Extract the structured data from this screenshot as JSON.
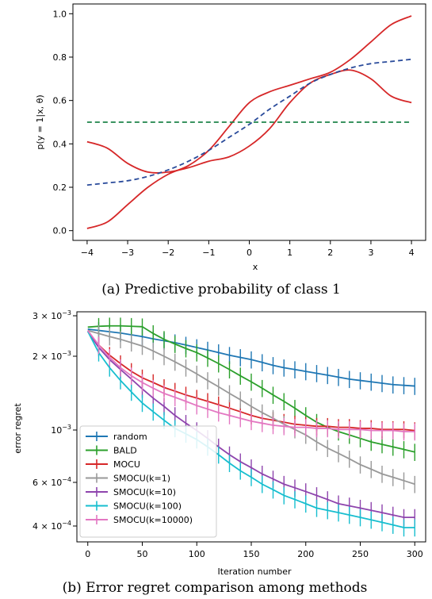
{
  "chart_data": [
    {
      "type": "line",
      "xlabel": "x",
      "ylabel": "p(y = 1|x, θ)",
      "caption": "(a) Predictive probability of class 1",
      "xlim": [
        -4,
        4
      ],
      "ylim": [
        0,
        1
      ],
      "x_ticks": [
        "−4",
        "−3",
        "−2",
        "−1",
        "0",
        "1",
        "2",
        "3",
        "4"
      ],
      "y_ticks": [
        "0.0",
        "0.2",
        "0.4",
        "0.6",
        "0.8",
        "1.0"
      ],
      "grid": false,
      "series": [
        {
          "style": "solid",
          "color": "#d62728",
          "x": [
            -4,
            -3.5,
            -3,
            -2.5,
            -2,
            -1.5,
            -1,
            -0.5,
            0,
            0.5,
            1,
            1.5,
            2,
            2.5,
            3,
            3.5,
            4
          ],
          "y": [
            0.01,
            0.04,
            0.12,
            0.2,
            0.26,
            0.3,
            0.37,
            0.48,
            0.59,
            0.64,
            0.67,
            0.7,
            0.73,
            0.79,
            0.87,
            0.95,
            0.99
          ]
        },
        {
          "style": "solid",
          "color": "#d62728",
          "x": [
            -4,
            -3.5,
            -3,
            -2.5,
            -2,
            -1.5,
            -1,
            -0.5,
            0,
            0.5,
            1,
            1.5,
            2,
            2.5,
            3,
            3.5,
            4
          ],
          "y": [
            0.41,
            0.38,
            0.31,
            0.27,
            0.27,
            0.29,
            0.32,
            0.34,
            0.39,
            0.47,
            0.59,
            0.68,
            0.72,
            0.74,
            0.7,
            0.62,
            0.59
          ]
        },
        {
          "style": "dashed",
          "color": "#2a4b9b",
          "x": [
            -4,
            -3.5,
            -3,
            -2.5,
            -2,
            -1.5,
            -1,
            -0.5,
            0,
            0.5,
            1,
            1.5,
            2,
            2.5,
            3,
            3.5,
            4
          ],
          "y": [
            0.21,
            0.22,
            0.23,
            0.25,
            0.28,
            0.32,
            0.37,
            0.43,
            0.49,
            0.56,
            0.62,
            0.68,
            0.72,
            0.75,
            0.77,
            0.78,
            0.79
          ]
        },
        {
          "style": "dashed",
          "color": "#1e8449",
          "x": [
            -4,
            4
          ],
          "y": [
            0.5,
            0.5
          ]
        }
      ]
    },
    {
      "type": "line",
      "xlabel": "Iteration number",
      "ylabel": "error regret",
      "caption": "(b) Error regret comparison among methods",
      "xlim": [
        -10,
        310
      ],
      "ylim": [
        0.00035,
        0.003
      ],
      "yscale": "log",
      "x_ticks": [
        "0",
        "50",
        "100",
        "150",
        "200",
        "250",
        "300"
      ],
      "legend_position": "lower-left",
      "grid": false,
      "x": [
        0,
        10,
        20,
        30,
        40,
        50,
        60,
        70,
        80,
        90,
        100,
        110,
        120,
        130,
        140,
        150,
        160,
        170,
        180,
        190,
        200,
        210,
        220,
        230,
        240,
        250,
        260,
        270,
        280,
        290,
        300
      ],
      "series": [
        {
          "name": "random",
          "color": "#1f77b4",
          "values": [
            0.00255,
            0.00252,
            0.00249,
            0.00246,
            0.00242,
            0.00238,
            0.00233,
            0.00229,
            0.00225,
            0.0022,
            0.00215,
            0.0021,
            0.00205,
            0.002,
            0.00196,
            0.00192,
            0.00187,
            0.00182,
            0.00178,
            0.00175,
            0.00172,
            0.00169,
            0.00166,
            0.00163,
            0.0016,
            0.00158,
            0.00156,
            0.00154,
            0.00152,
            0.00151,
            0.0015
          ]
        },
        {
          "name": "BALD",
          "color": "#2ca02c",
          "values": [
            0.0026,
            0.00262,
            0.00263,
            0.00263,
            0.00262,
            0.00261,
            0.00245,
            0.00232,
            0.00222,
            0.00213,
            0.00205,
            0.00195,
            0.00185,
            0.00175,
            0.00165,
            0.00156,
            0.00147,
            0.00138,
            0.0013,
            0.00122,
            0.00114,
            0.00107,
            0.00102,
            0.00098,
            0.00095,
            0.00092,
            0.00089,
            0.00087,
            0.00085,
            0.00083,
            0.00081
          ]
        },
        {
          "name": "MOCU",
          "color": "#d62728",
          "values": [
            0.0025,
            0.0022,
            0.002,
            0.00185,
            0.00172,
            0.00162,
            0.00155,
            0.00148,
            0.00143,
            0.00138,
            0.00134,
            0.0013,
            0.00126,
            0.00122,
            0.00118,
            0.00114,
            0.00111,
            0.00109,
            0.00107,
            0.00105,
            0.00104,
            0.00103,
            0.00103,
            0.00102,
            0.00102,
            0.00101,
            0.00101,
            0.001,
            0.001,
            0.001,
            0.00099
          ]
        },
        {
          "name": "SMOCU(k=1)",
          "color": "#999999",
          "values": [
            0.00252,
            0.00245,
            0.00238,
            0.00232,
            0.00225,
            0.00218,
            0.00208,
            0.00198,
            0.00188,
            0.00178,
            0.00168,
            0.00158,
            0.00149,
            0.0014,
            0.00132,
            0.00124,
            0.00117,
            0.00111,
            0.00105,
            0.001,
            0.00095,
            0.00089,
            0.00084,
            0.0008,
            0.00076,
            0.00072,
            0.00069,
            0.00066,
            0.00064,
            0.00062,
            0.0006
          ]
        },
        {
          "name": "SMOCU(k=10)",
          "color": "#8e44ad",
          "values": [
            0.0025,
            0.00215,
            0.00192,
            0.00175,
            0.0016,
            0.00146,
            0.00134,
            0.00124,
            0.00114,
            0.00106,
            0.00099,
            0.00092,
            0.00085,
            0.00079,
            0.00074,
            0.0007,
            0.00066,
            0.00063,
            0.0006,
            0.00058,
            0.00056,
            0.00054,
            0.00052,
            0.0005,
            0.00049,
            0.00048,
            0.00047,
            0.00046,
            0.00045,
            0.00044,
            0.00044
          ]
        },
        {
          "name": "SMOCU(k=100)",
          "color": "#17becf",
          "values": [
            0.0025,
            0.00205,
            0.00178,
            0.00158,
            0.00142,
            0.00128,
            0.00118,
            0.00109,
            0.00101,
            0.00096,
            0.00091,
            0.00085,
            0.00079,
            0.00073,
            0.00068,
            0.00064,
            0.0006,
            0.00057,
            0.00054,
            0.00052,
            0.0005,
            0.00048,
            0.00047,
            0.00046,
            0.00045,
            0.00044,
            0.00043,
            0.00042,
            0.00041,
            0.0004,
            0.0004
          ]
        },
        {
          "name": "SMOCU(k=10000)",
          "color": "#e377c2",
          "values": [
            0.00252,
            0.0022,
            0.00196,
            0.00178,
            0.00165,
            0.00155,
            0.00147,
            0.0014,
            0.00135,
            0.0013,
            0.00125,
            0.00121,
            0.00117,
            0.00114,
            0.00111,
            0.00108,
            0.00106,
            0.00104,
            0.00103,
            0.00102,
            0.00102,
            0.00101,
            0.00101,
            0.001,
            0.001,
            0.001,
            0.00099,
            0.00099,
            0.00099,
            0.00098,
            0.00098
          ]
        }
      ]
    }
  ]
}
